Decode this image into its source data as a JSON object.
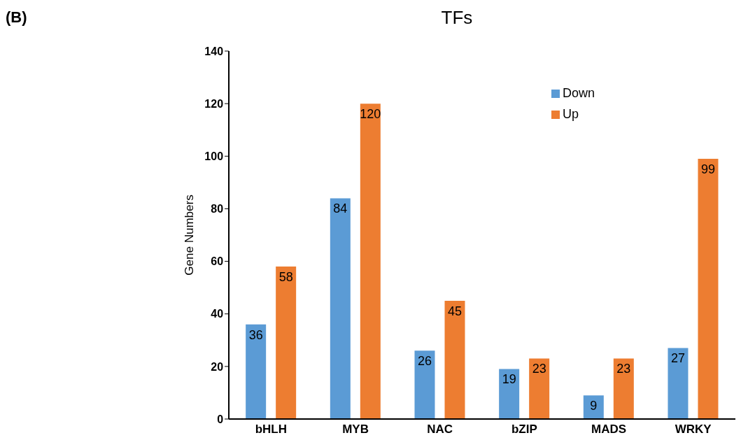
{
  "chart_data": {
    "type": "bar",
    "title": "TFs",
    "ylabel": "Gene Numbers",
    "annotations": [
      "(B)"
    ],
    "categories": [
      "bHLH",
      "MYB",
      "NAC",
      "bZIP",
      "MADS",
      "WRKY"
    ],
    "series": [
      {
        "name": "Down",
        "color": "#5b9bd5",
        "values": [
          36,
          84,
          26,
          19,
          9,
          27
        ]
      },
      {
        "name": "Up",
        "color": "#ed7d31",
        "values": [
          58,
          120,
          45,
          23,
          23,
          99
        ]
      }
    ],
    "ylim": [
      0,
      140
    ],
    "yticks": [
      0,
      20,
      40,
      60,
      80,
      100,
      120,
      140
    ],
    "grid": false,
    "legend": "top right",
    "data_labels": true
  }
}
